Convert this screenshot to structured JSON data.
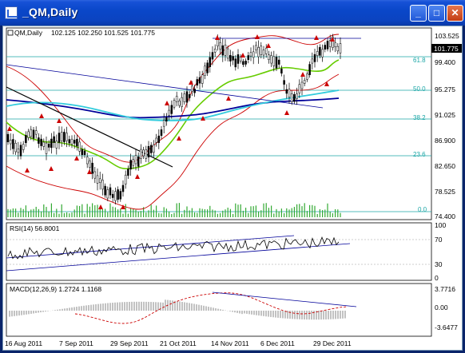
{
  "window": {
    "title": "_QM,Daily",
    "buttons": {
      "minimize": "_",
      "maximize": "□",
      "close": "✕"
    }
  },
  "chart": {
    "symbol_label": "QM,Daily",
    "ohlc": "102.125 102.250 101.525 101.775",
    "current_price": "101.775",
    "price_ticks": [
      "103.525",
      "99.400",
      "95.275",
      "91.025",
      "86.900",
      "82.650",
      "78.525",
      "74.400"
    ],
    "fib_levels": [
      "61.8",
      "50.0",
      "38.2",
      "23.6",
      "0.0"
    ],
    "colors": {
      "background": "#ffffff",
      "bollinger": "#cc0000",
      "ma_fast": "#66cc00",
      "ma_slow": "#000099",
      "ma_mid": "#33ccdd",
      "trendline": "#000000",
      "fib": "#1ba6a6",
      "volume": "#33aa33"
    }
  },
  "rsi": {
    "label": "RSI(14) 56.8001",
    "ticks": [
      "100",
      "70",
      "30",
      "0"
    ]
  },
  "macd": {
    "label": "MACD(12,26,9) 1.2724 1.1168",
    "ticks": [
      "3.7716",
      "0.00",
      "-3.6477"
    ]
  },
  "time_axis": [
    "16 Aug 2011",
    "7 Sep 2011",
    "29 Sep 2011",
    "21 Oct 2011",
    "14 Nov 2011",
    "6 Dec 2011",
    "29 Dec 2011"
  ]
}
